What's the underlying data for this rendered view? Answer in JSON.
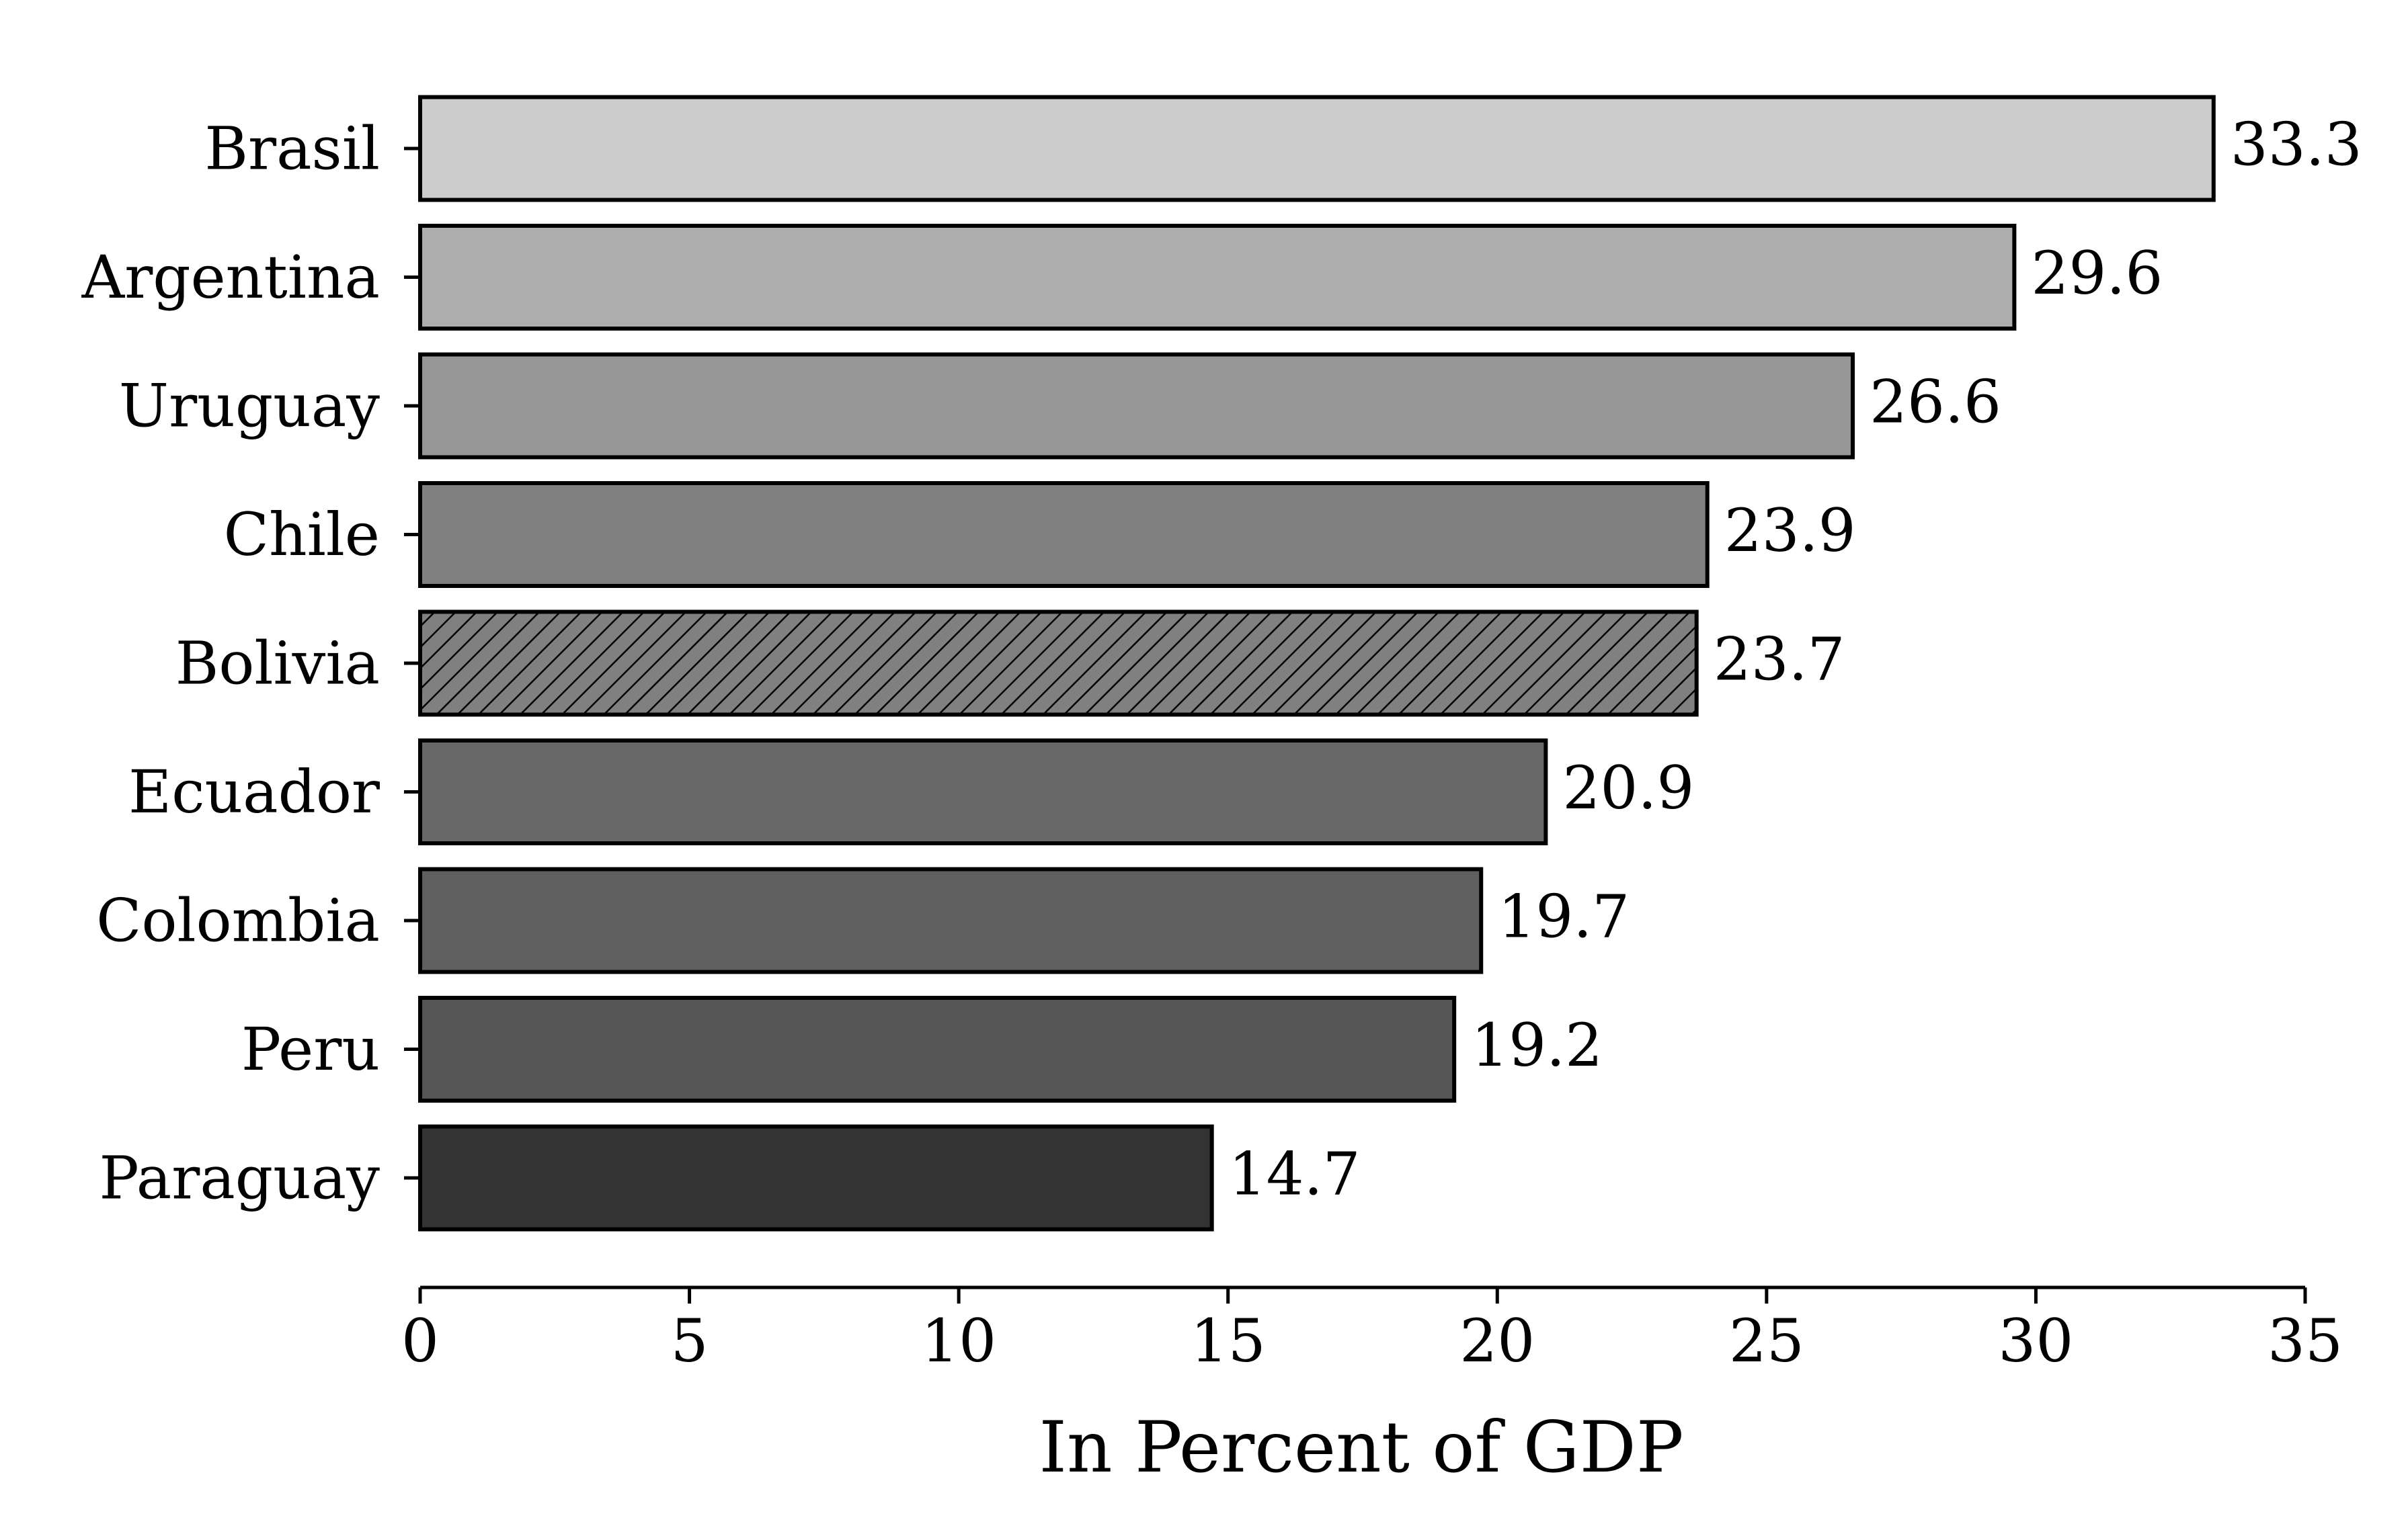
{
  "chart_data": {
    "type": "bar",
    "orientation": "horizontal",
    "categories": [
      "Brasil",
      "Argentina",
      "Uruguay",
      "Chile",
      "Bolivia",
      "Ecuador",
      "Colombia",
      "Peru",
      "Paraguay"
    ],
    "values": [
      33.3,
      29.6,
      26.6,
      23.9,
      23.7,
      20.9,
      19.7,
      19.2,
      14.7
    ],
    "value_labels": [
      "33.3",
      "29.6",
      "26.6",
      "23.9",
      "23.7",
      "20.9",
      "19.7",
      "19.2",
      "14.7"
    ],
    "bar_colors": [
      "#cccccc",
      "#adadad",
      "#969696",
      "#808080",
      "#808080",
      "#686868",
      "#5f5f5f",
      "#555555",
      "#333333"
    ],
    "highlighted_category": "Bolivia",
    "highlight_style": "diagonal-hatch",
    "edge_color": "#000000",
    "xlabel": "In Percent of GDP",
    "ylabel": "",
    "title": "",
    "xlim": [
      0,
      35
    ],
    "xticks": [
      0,
      5,
      10,
      15,
      20,
      25,
      30,
      35
    ],
    "xtick_labels": [
      "0",
      "5",
      "10",
      "15",
      "20",
      "25",
      "30",
      "35"
    ],
    "grid": false,
    "legend": "none"
  }
}
